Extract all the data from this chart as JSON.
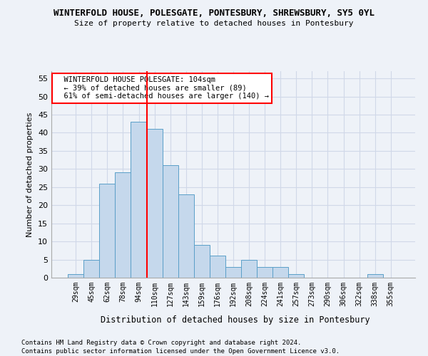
{
  "title1": "WINTERFOLD HOUSE, POLESGATE, PONTESBURY, SHREWSBURY, SY5 0YL",
  "title2": "Size of property relative to detached houses in Pontesbury",
  "xlabel": "Distribution of detached houses by size in Pontesbury",
  "ylabel": "Number of detached properties",
  "categories": [
    "29sqm",
    "45sqm",
    "62sqm",
    "78sqm",
    "94sqm",
    "110sqm",
    "127sqm",
    "143sqm",
    "159sqm",
    "176sqm",
    "192sqm",
    "208sqm",
    "224sqm",
    "241sqm",
    "257sqm",
    "273sqm",
    "290sqm",
    "306sqm",
    "322sqm",
    "338sqm",
    "355sqm"
  ],
  "values": [
    1,
    5,
    26,
    29,
    43,
    41,
    31,
    23,
    9,
    6,
    3,
    5,
    3,
    3,
    1,
    0,
    0,
    0,
    0,
    1,
    0
  ],
  "bar_color": "#c5d8ec",
  "bar_edge_color": "#5a9fc8",
  "grid_color": "#d0d8e8",
  "reference_line_x": 4.5,
  "reference_line_color": "red",
  "annotation_text": "  WINTERFOLD HOUSE POLESGATE: 104sqm\n  ← 39% of detached houses are smaller (89)\n  61% of semi-detached houses are larger (140) →",
  "annotation_box_color": "white",
  "annotation_box_edge": "red",
  "ylim": [
    0,
    57
  ],
  "yticks": [
    0,
    5,
    10,
    15,
    20,
    25,
    30,
    35,
    40,
    45,
    50,
    55
  ],
  "footer1": "Contains HM Land Registry data © Crown copyright and database right 2024.",
  "footer2": "Contains public sector information licensed under the Open Government Licence v3.0.",
  "background_color": "#eef2f8"
}
